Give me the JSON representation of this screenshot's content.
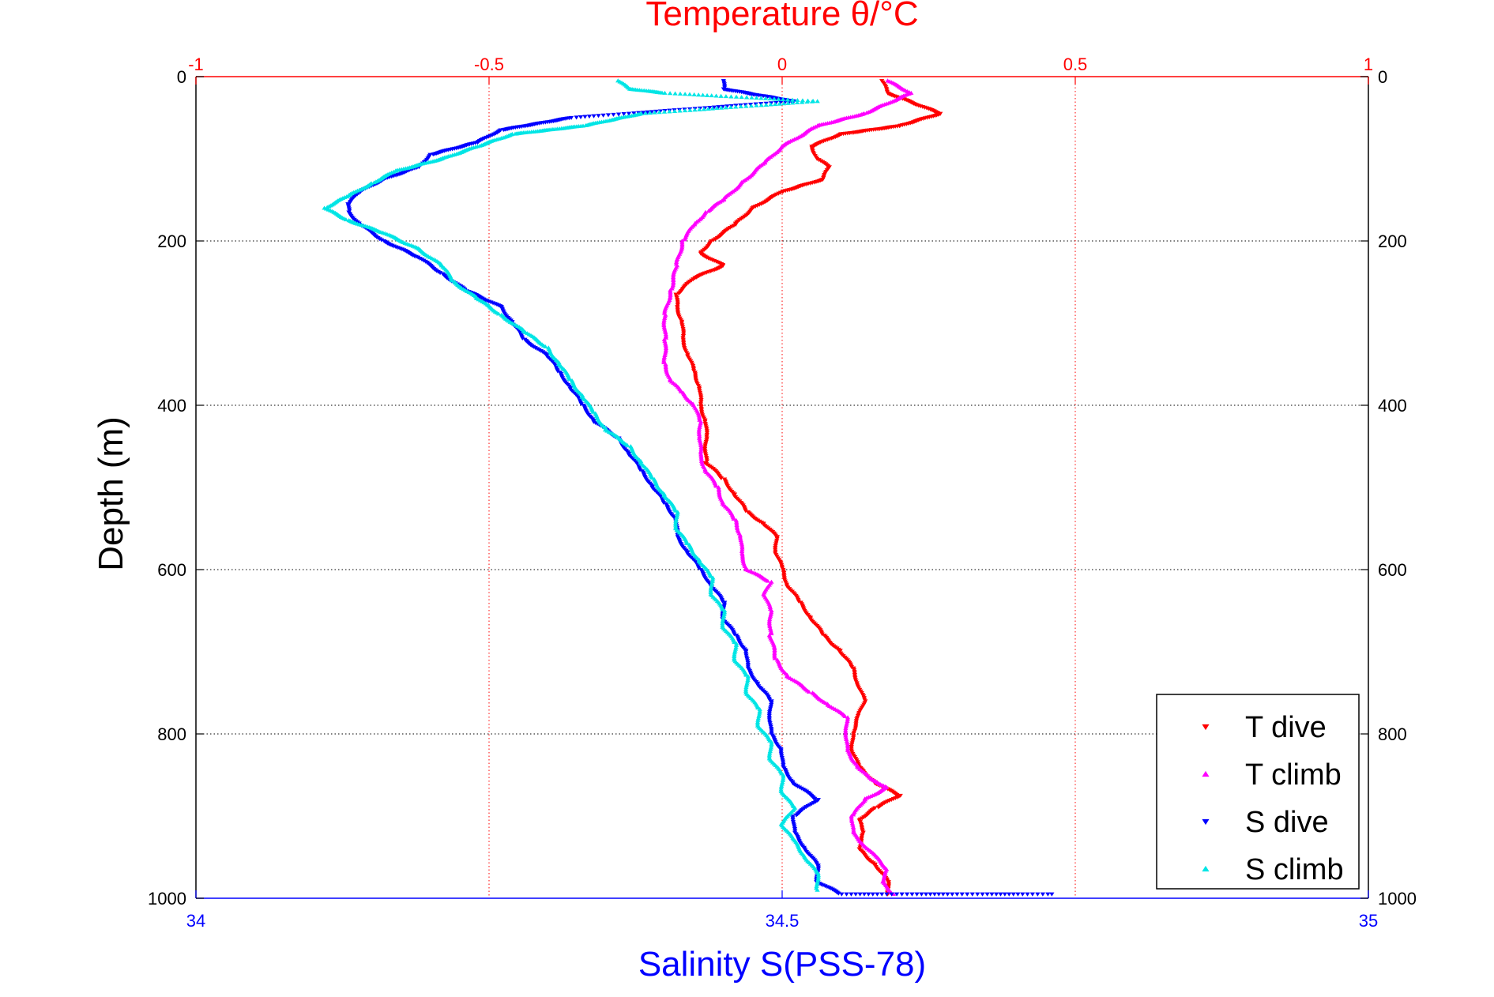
{
  "chart_data": {
    "type": "scatter",
    "title": "Temperature θ/°C",
    "ylabel": "Depth (m)",
    "xlabel": "Salinity S(PSS-78)",
    "colors": {
      "temperature_axis": "#ff0000",
      "salinity_axis": "#0000ff",
      "frame": "#000000"
    },
    "temperature_axis": {
      "lim": [
        -1,
        1
      ],
      "ticks": [
        "-1",
        "-0.5",
        "0",
        "0.5",
        "1"
      ],
      "tick_values": [
        -1,
        -0.5,
        0,
        0.5,
        1
      ],
      "grid": true
    },
    "salinity_axis": {
      "lim": [
        34,
        35
      ],
      "ticks": [
        "34",
        "34.5",
        "35"
      ],
      "tick_values": [
        34,
        34.5,
        35
      ]
    },
    "depth_axis": {
      "lim": [
        0,
        1000
      ],
      "reversed": true,
      "ticks": [
        "0",
        "200",
        "400",
        "600",
        "800",
        "1000"
      ],
      "tick_values": [
        0,
        200,
        400,
        600,
        800,
        1000
      ],
      "grid": true
    },
    "legend": {
      "position": "bottom-right"
    },
    "series": [
      {
        "name": "T dive",
        "axis": "temperature",
        "color": "#ff0000",
        "marker": "triangle-down",
        "points": [
          [
            0.17,
            5
          ],
          [
            0.18,
            20
          ],
          [
            0.27,
            45
          ],
          [
            0.2,
            60
          ],
          [
            0.1,
            70
          ],
          [
            0.05,
            85
          ],
          [
            0.06,
            100
          ],
          [
            0.08,
            110
          ],
          [
            0.07,
            125
          ],
          [
            0.0,
            140
          ],
          [
            -0.05,
            160
          ],
          [
            -0.08,
            180
          ],
          [
            -0.12,
            200
          ],
          [
            -0.14,
            215
          ],
          [
            -0.1,
            230
          ],
          [
            -0.15,
            245
          ],
          [
            -0.18,
            265
          ],
          [
            -0.18,
            280
          ],
          [
            -0.17,
            300
          ],
          [
            -0.17,
            320
          ],
          [
            -0.16,
            340
          ],
          [
            -0.15,
            360
          ],
          [
            -0.14,
            380
          ],
          [
            -0.14,
            400
          ],
          [
            -0.13,
            420
          ],
          [
            -0.13,
            440
          ],
          [
            -0.13,
            470
          ],
          [
            -0.1,
            490
          ],
          [
            -0.08,
            510
          ],
          [
            -0.06,
            530
          ],
          [
            -0.03,
            545
          ],
          [
            -0.01,
            560
          ],
          [
            -0.01,
            580
          ],
          [
            0.0,
            600
          ],
          [
            0.01,
            620
          ],
          [
            0.03,
            640
          ],
          [
            0.05,
            660
          ],
          [
            0.07,
            680
          ],
          [
            0.1,
            700
          ],
          [
            0.12,
            720
          ],
          [
            0.13,
            740
          ],
          [
            0.14,
            760
          ],
          [
            0.13,
            780
          ],
          [
            0.12,
            800
          ],
          [
            0.12,
            820
          ],
          [
            0.13,
            840
          ],
          [
            0.16,
            860
          ],
          [
            0.2,
            875
          ],
          [
            0.16,
            890
          ],
          [
            0.13,
            905
          ],
          [
            0.14,
            920
          ],
          [
            0.13,
            940
          ],
          [
            0.16,
            960
          ],
          [
            0.18,
            980
          ],
          [
            0.18,
            995
          ]
        ]
      },
      {
        "name": "T climb",
        "axis": "temperature",
        "color": "#ff00ff",
        "marker": "triangle-up",
        "points": [
          [
            0.18,
            5
          ],
          [
            0.22,
            20
          ],
          [
            0.14,
            45
          ],
          [
            0.06,
            60
          ],
          [
            0.0,
            85
          ],
          [
            -0.03,
            105
          ],
          [
            -0.07,
            130
          ],
          [
            -0.1,
            150
          ],
          [
            -0.13,
            165
          ],
          [
            -0.15,
            180
          ],
          [
            -0.17,
            200
          ],
          [
            -0.18,
            230
          ],
          [
            -0.19,
            260
          ],
          [
            -0.2,
            290
          ],
          [
            -0.2,
            320
          ],
          [
            -0.2,
            350
          ],
          [
            -0.19,
            370
          ],
          [
            -0.17,
            385
          ],
          [
            -0.15,
            400
          ],
          [
            -0.14,
            420
          ],
          [
            -0.14,
            440
          ],
          [
            -0.14,
            460
          ],
          [
            -0.13,
            480
          ],
          [
            -0.11,
            500
          ],
          [
            -0.1,
            520
          ],
          [
            -0.08,
            540
          ],
          [
            -0.07,
            560
          ],
          [
            -0.07,
            580
          ],
          [
            -0.06,
            600
          ],
          [
            -0.02,
            615
          ],
          [
            -0.03,
            630
          ],
          [
            -0.02,
            650
          ],
          [
            -0.02,
            680
          ],
          [
            -0.01,
            710
          ],
          [
            0.01,
            730
          ],
          [
            0.05,
            750
          ],
          [
            0.08,
            765
          ],
          [
            0.11,
            780
          ],
          [
            0.11,
            800
          ],
          [
            0.11,
            820
          ],
          [
            0.13,
            840
          ],
          [
            0.15,
            855
          ],
          [
            0.18,
            865
          ],
          [
            0.14,
            880
          ],
          [
            0.12,
            900
          ],
          [
            0.12,
            920
          ],
          [
            0.14,
            935
          ],
          [
            0.16,
            950
          ],
          [
            0.18,
            965
          ],
          [
            0.17,
            980
          ],
          [
            0.19,
            995
          ]
        ]
      },
      {
        "name": "S dive",
        "axis": "salinity",
        "color": "#0000ff",
        "marker": "triangle-down",
        "points": [
          [
            34.45,
            5
          ],
          [
            34.45,
            15
          ],
          [
            34.51,
            30
          ],
          [
            34.32,
            50
          ],
          [
            34.26,
            65
          ],
          [
            34.24,
            80
          ],
          [
            34.2,
            95
          ],
          [
            34.19,
            110
          ],
          [
            34.16,
            125
          ],
          [
            34.14,
            140
          ],
          [
            34.13,
            155
          ],
          [
            34.13,
            165
          ],
          [
            34.14,
            180
          ],
          [
            34.16,
            200
          ],
          [
            34.19,
            220
          ],
          [
            34.21,
            240
          ],
          [
            34.23,
            260
          ],
          [
            34.26,
            280
          ],
          [
            34.27,
            300
          ],
          [
            34.28,
            320
          ],
          [
            34.3,
            340
          ],
          [
            34.31,
            360
          ],
          [
            34.32,
            380
          ],
          [
            34.33,
            400
          ],
          [
            34.34,
            420
          ],
          [
            34.36,
            440
          ],
          [
            34.37,
            460
          ],
          [
            34.38,
            480
          ],
          [
            34.39,
            500
          ],
          [
            34.4,
            520
          ],
          [
            34.41,
            540
          ],
          [
            34.41,
            560
          ],
          [
            34.42,
            580
          ],
          [
            34.43,
            600
          ],
          [
            34.44,
            620
          ],
          [
            34.45,
            640
          ],
          [
            34.45,
            660
          ],
          [
            34.46,
            680
          ],
          [
            34.47,
            700
          ],
          [
            34.47,
            720
          ],
          [
            34.48,
            740
          ],
          [
            34.49,
            760
          ],
          [
            34.49,
            780
          ],
          [
            34.49,
            800
          ],
          [
            34.5,
            820
          ],
          [
            34.5,
            840
          ],
          [
            34.51,
            860
          ],
          [
            34.53,
            880
          ],
          [
            34.51,
            900
          ],
          [
            34.51,
            920
          ],
          [
            34.52,
            940
          ],
          [
            34.53,
            960
          ],
          [
            34.53,
            980
          ],
          [
            34.55,
            995
          ],
          [
            34.73,
            995
          ]
        ]
      },
      {
        "name": "S climb",
        "axis": "salinity",
        "color": "#00e5e5",
        "marker": "triangle-up",
        "points": [
          [
            34.36,
            5
          ],
          [
            34.37,
            15
          ],
          [
            34.4,
            20
          ],
          [
            34.53,
            30
          ],
          [
            34.38,
            45
          ],
          [
            34.33,
            60
          ],
          [
            34.27,
            70
          ],
          [
            34.24,
            85
          ],
          [
            34.21,
            100
          ],
          [
            34.17,
            115
          ],
          [
            34.15,
            130
          ],
          [
            34.13,
            145
          ],
          [
            34.11,
            160
          ],
          [
            34.13,
            175
          ],
          [
            34.16,
            190
          ],
          [
            34.19,
            210
          ],
          [
            34.21,
            230
          ],
          [
            34.22,
            250
          ],
          [
            34.24,
            270
          ],
          [
            34.26,
            290
          ],
          [
            34.28,
            310
          ],
          [
            34.3,
            330
          ],
          [
            34.31,
            350
          ],
          [
            34.32,
            370
          ],
          [
            34.33,
            390
          ],
          [
            34.34,
            410
          ],
          [
            34.35,
            430
          ],
          [
            34.37,
            450
          ],
          [
            34.38,
            470
          ],
          [
            34.39,
            490
          ],
          [
            34.4,
            510
          ],
          [
            34.41,
            530
          ],
          [
            34.41,
            550
          ],
          [
            34.42,
            570
          ],
          [
            34.43,
            590
          ],
          [
            34.44,
            610
          ],
          [
            34.44,
            630
          ],
          [
            34.45,
            650
          ],
          [
            34.45,
            670
          ],
          [
            34.46,
            690
          ],
          [
            34.46,
            710
          ],
          [
            34.47,
            730
          ],
          [
            34.47,
            750
          ],
          [
            34.48,
            770
          ],
          [
            34.48,
            790
          ],
          [
            34.49,
            810
          ],
          [
            34.49,
            830
          ],
          [
            34.5,
            850
          ],
          [
            34.5,
            870
          ],
          [
            34.51,
            890
          ],
          [
            34.5,
            910
          ],
          [
            34.51,
            930
          ],
          [
            34.52,
            950
          ],
          [
            34.53,
            970
          ],
          [
            34.53,
            990
          ]
        ]
      }
    ]
  }
}
